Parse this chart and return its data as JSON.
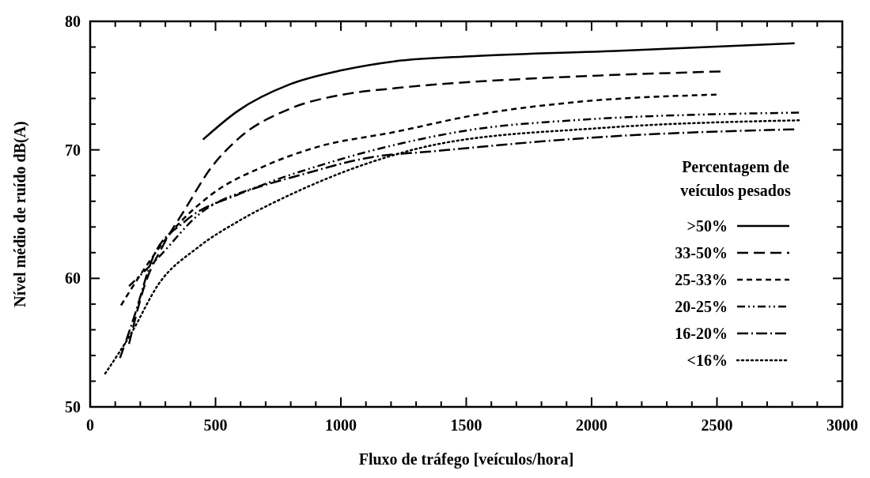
{
  "chart_data": {
    "type": "line",
    "xlabel": "Fluxo de tráfego [veículos/hora]",
    "ylabel": "Nível médio de ruído dB(A)",
    "legend_title": "Percentagem de veículos pesados",
    "legend": "right",
    "grid": false,
    "marker": "none",
    "xlim": [
      0,
      3000
    ],
    "ylim": [
      50,
      80
    ],
    "xticks": [
      0,
      {
        "value": 100,
        "label": null
      },
      {
        "value": 200,
        "label": null
      },
      {
        "value": 300,
        "label": null
      },
      {
        "value": 400,
        "label": null
      },
      500,
      {
        "value": 600,
        "label": null
      },
      {
        "value": 700,
        "label": null
      },
      {
        "value": 800,
        "label": null
      },
      {
        "value": 900,
        "label": null
      },
      1000,
      {
        "value": 1100,
        "label": null
      },
      {
        "value": 1200,
        "label": null
      },
      {
        "value": 1300,
        "label": null
      },
      {
        "value": 1400,
        "label": null
      },
      1500,
      {
        "value": 1600,
        "label": null
      },
      {
        "value": 1700,
        "label": null
      },
      {
        "value": 1800,
        "label": null
      },
      {
        "value": 1900,
        "label": null
      },
      2000,
      {
        "value": 2100,
        "label": null
      },
      {
        "value": 2200,
        "label": null
      },
      {
        "value": 2300,
        "label": null
      },
      {
        "value": 2400,
        "label": null
      },
      2500,
      {
        "value": 2600,
        "label": null
      },
      {
        "value": 2700,
        "label": null
      },
      {
        "value": 2800,
        "label": null
      },
      {
        "value": 2900,
        "label": null
      },
      3000
    ],
    "yticks": [
      50,
      {
        "value": 52,
        "label": null
      },
      {
        "value": 54,
        "label": null
      },
      {
        "value": 56,
        "label": null
      },
      {
        "value": 58,
        "label": null
      },
      60,
      {
        "value": 62,
        "label": null
      },
      {
        "value": 64,
        "label": null
      },
      {
        "value": 66,
        "label": null
      },
      {
        "value": 68,
        "label": null
      },
      70,
      {
        "value": 72,
        "label": null
      },
      {
        "value": 74,
        "label": null
      },
      {
        "value": 76,
        "label": null
      },
      {
        "value": 78,
        "label": null
      },
      80
    ],
    "series": [
      {
        "name": ">50%",
        "color": "#000000",
        "line_style": "solid",
        "x": [
          450,
          587,
          797,
          1006,
          1218,
          1533,
          2095,
          2810
        ],
        "values": [
          70.8,
          73.0,
          75.1,
          76.2,
          76.9,
          77.3,
          77.7,
          78.3
        ]
      },
      {
        "name": "33-50%",
        "color": "#000000",
        "line_style": "dashed",
        "x": [
          155,
          218,
          292,
          376,
          482,
          587,
          797,
          1008,
          1218,
          1533,
          1817,
          2514
        ],
        "values": [
          54.9,
          59.5,
          62.6,
          65.3,
          68.6,
          70.8,
          73.2,
          74.3,
          74.8,
          75.3,
          75.6,
          76.1
        ]
      },
      {
        "name": "25-33%",
        "color": "#000000",
        "line_style": "dashed",
        "x": [
          123,
          218,
          324,
          482,
          691,
          902,
          1218,
          1533,
          1927,
          2498
        ],
        "values": [
          57.9,
          60.8,
          63.6,
          66.5,
          68.7,
          70.2,
          71.4,
          72.7,
          73.7,
          74.3
        ]
      },
      {
        "name": "20-25%",
        "color": "#000000",
        "line_style": "dashed",
        "x": [
          155,
          271,
          429,
          691,
          902,
          1218,
          1533,
          1927,
          2827
        ],
        "values": [
          59.4,
          61.6,
          64.9,
          67.3,
          68.7,
          70.4,
          71.6,
          72.3,
          72.9
        ]
      },
      {
        "name": "16-20%",
        "color": "#000000",
        "line_style": "dashed",
        "x": [
          119,
          177,
          250,
          376,
          587,
          849,
          1114,
          1375,
          2038,
          2808
        ],
        "values": [
          53.8,
          57.1,
          61.6,
          64.4,
          66.5,
          68.1,
          69.4,
          69.9,
          71.0,
          71.6
        ]
      },
      {
        "name": "<16%",
        "color": "#000000",
        "line_style": "dotted",
        "x": [
          60,
          166,
          271,
          429,
          587,
          797,
          1114,
          1375,
          2038,
          2827
        ],
        "values": [
          52.6,
          55.8,
          59.5,
          62.4,
          64.4,
          66.5,
          69.0,
          70.4,
          71.7,
          72.3
        ]
      }
    ]
  }
}
